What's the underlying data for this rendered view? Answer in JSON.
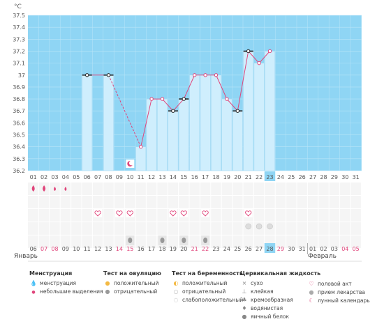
{
  "chart_data": {
    "type": "line",
    "unit": "°C",
    "y_ticks": [
      "37.5",
      "37.4",
      "37.3",
      "37.2",
      "37.1",
      "37",
      "36.9",
      "36.8",
      "36.7",
      "36.6",
      "36.5",
      "36.4",
      "36.3",
      "36.2"
    ],
    "ylim": [
      36.2,
      37.5
    ],
    "cycle_days": [
      "01",
      "02",
      "03",
      "04",
      "05",
      "06",
      "07",
      "08",
      "09",
      "10",
      "11",
      "12",
      "13",
      "14",
      "15",
      "16",
      "17",
      "18",
      "19",
      "20",
      "21",
      "22",
      "23",
      "24",
      "25",
      "26",
      "27",
      "28",
      "29",
      "30",
      "31"
    ],
    "current_cycle_day": "23",
    "series": [
      {
        "x": [
          6,
          7,
          8
        ],
        "y": [
          37.0,
          37.0,
          37.0
        ],
        "style": "solid"
      },
      {
        "x": [
          8,
          9,
          10,
          11
        ],
        "y": [
          37.0,
          null,
          null,
          36.4
        ],
        "style": "dashed"
      },
      {
        "x": [
          11,
          12,
          13,
          14,
          15,
          16,
          17,
          18,
          19,
          20,
          21,
          22,
          23
        ],
        "y": [
          36.4,
          36.8,
          36.8,
          36.7,
          36.8,
          37.0,
          37.0,
          37.0,
          36.8,
          36.7,
          37.2,
          37.1,
          37.2
        ],
        "style": "solid"
      }
    ],
    "bars": [
      {
        "day": 6,
        "value": 37.0
      },
      {
        "day": 8,
        "value": 37.0
      },
      {
        "day": 11,
        "value": 36.4
      },
      {
        "day": 12,
        "value": 36.8
      },
      {
        "day": 13,
        "value": 36.8
      },
      {
        "day": 14,
        "value": 36.7
      },
      {
        "day": 15,
        "value": 36.8
      },
      {
        "day": 16,
        "value": 37.0
      },
      {
        "day": 17,
        "value": 37.0
      },
      {
        "day": 18,
        "value": 37.0
      },
      {
        "day": 19,
        "value": 36.8
      },
      {
        "day": 20,
        "value": 36.7
      },
      {
        "day": 21,
        "value": 37.2
      },
      {
        "day": 22,
        "value": 37.1
      },
      {
        "day": 23,
        "value": 37.2
      }
    ],
    "black_markers": [
      6,
      8,
      14,
      15,
      20,
      21
    ],
    "pink_markers": [
      11,
      12,
      13,
      16,
      17,
      18,
      19,
      22,
      23
    ],
    "moon_day": 10,
    "menstruation_days": [
      1,
      2
    ],
    "light_discharge_days": [
      3,
      4
    ],
    "intercourse_days": [
      7,
      9,
      10,
      14,
      15,
      17,
      21
    ],
    "pregnancy_test_days": [
      21,
      22,
      23
    ],
    "cervical_fluid_days": [
      10,
      13,
      15,
      17
    ],
    "dates": [
      {
        "label": "06",
        "red": false
      },
      {
        "label": "07",
        "red": true
      },
      {
        "label": "08",
        "red": true
      },
      {
        "label": "09",
        "red": false
      },
      {
        "label": "10",
        "red": false
      },
      {
        "label": "11",
        "red": false
      },
      {
        "label": "12",
        "red": false
      },
      {
        "label": "13",
        "red": false
      },
      {
        "label": "14",
        "red": true
      },
      {
        "label": "15",
        "red": true
      },
      {
        "label": "16",
        "red": false
      },
      {
        "label": "17",
        "red": false
      },
      {
        "label": "18",
        "red": false
      },
      {
        "label": "19",
        "red": false
      },
      {
        "label": "20",
        "red": false
      },
      {
        "label": "21",
        "red": true
      },
      {
        "label": "22",
        "red": true
      },
      {
        "label": "23",
        "red": false
      },
      {
        "label": "24",
        "red": false
      },
      {
        "label": "25",
        "red": false
      },
      {
        "label": "26",
        "red": false
      },
      {
        "label": "27",
        "red": false
      },
      {
        "label": "28",
        "red": false
      },
      {
        "label": "29",
        "red": true
      },
      {
        "label": "30",
        "red": false
      },
      {
        "label": "31",
        "red": false
      },
      {
        "label": "01",
        "red": false
      },
      {
        "label": "02",
        "red": false
      },
      {
        "label": "03",
        "red": false
      },
      {
        "label": "04",
        "red": true
      },
      {
        "label": "05",
        "red": true
      }
    ],
    "month_start": "Январь",
    "month_next": "Февраль"
  },
  "legend": {
    "menstruation": {
      "title": "Менструация",
      "items": [
        "менструация",
        "небольшие выделения"
      ]
    },
    "ovulation": {
      "title": "Тест на овуляцию",
      "items": [
        "положительный",
        "отрицательный"
      ]
    },
    "pregnancy": {
      "title": "Тест на беременность",
      "items": [
        "положительный",
        "отрицательный",
        "слабоположительный"
      ]
    },
    "cervical": {
      "title": "Цервикальная жидкость",
      "items": [
        "сухо",
        "клейкая",
        "кремообразная",
        "водянистая",
        "яичный белок"
      ]
    },
    "other": {
      "items": [
        "половой акт",
        "прием лекарства",
        "лунный календарь"
      ]
    }
  }
}
